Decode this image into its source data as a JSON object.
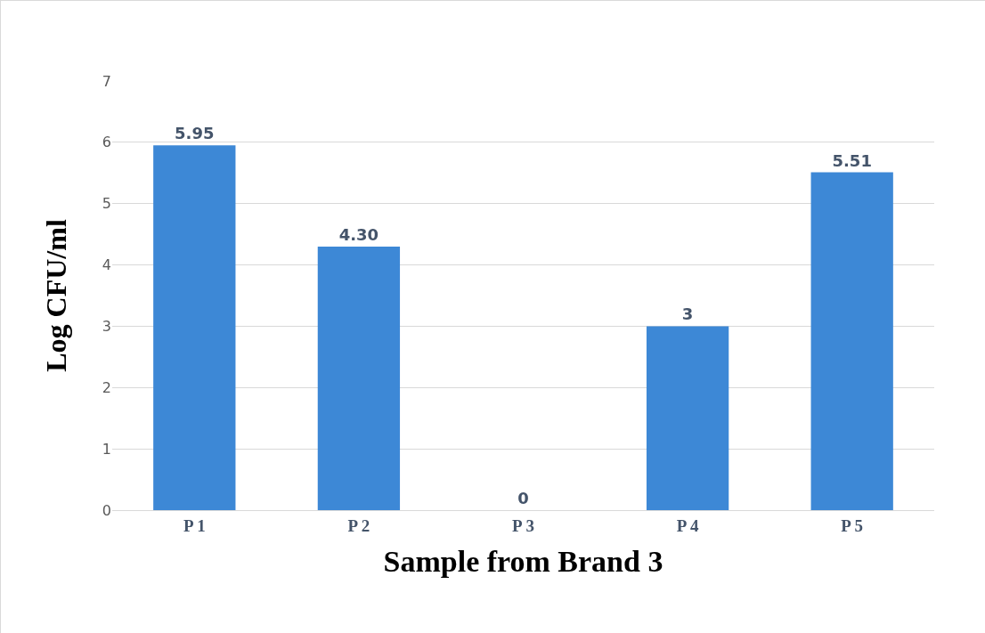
{
  "chart_data": {
    "type": "bar",
    "xlabel": "Sample from Brand 3",
    "ylabel": "Log CFU/ml",
    "categories": [
      "P 1",
      "P 2",
      "P 3",
      "P 4",
      "P 5"
    ],
    "values": [
      5.95,
      4.3,
      0,
      3,
      5.51
    ],
    "value_labels": [
      "5.95",
      "4.30",
      "0",
      "3",
      "5.51"
    ],
    "color": "#3d88d6",
    "ylim": [
      0,
      7
    ],
    "yticks": [
      0,
      1,
      2,
      3,
      4,
      5,
      6,
      7
    ],
    "grid": "y",
    "legend": false
  }
}
